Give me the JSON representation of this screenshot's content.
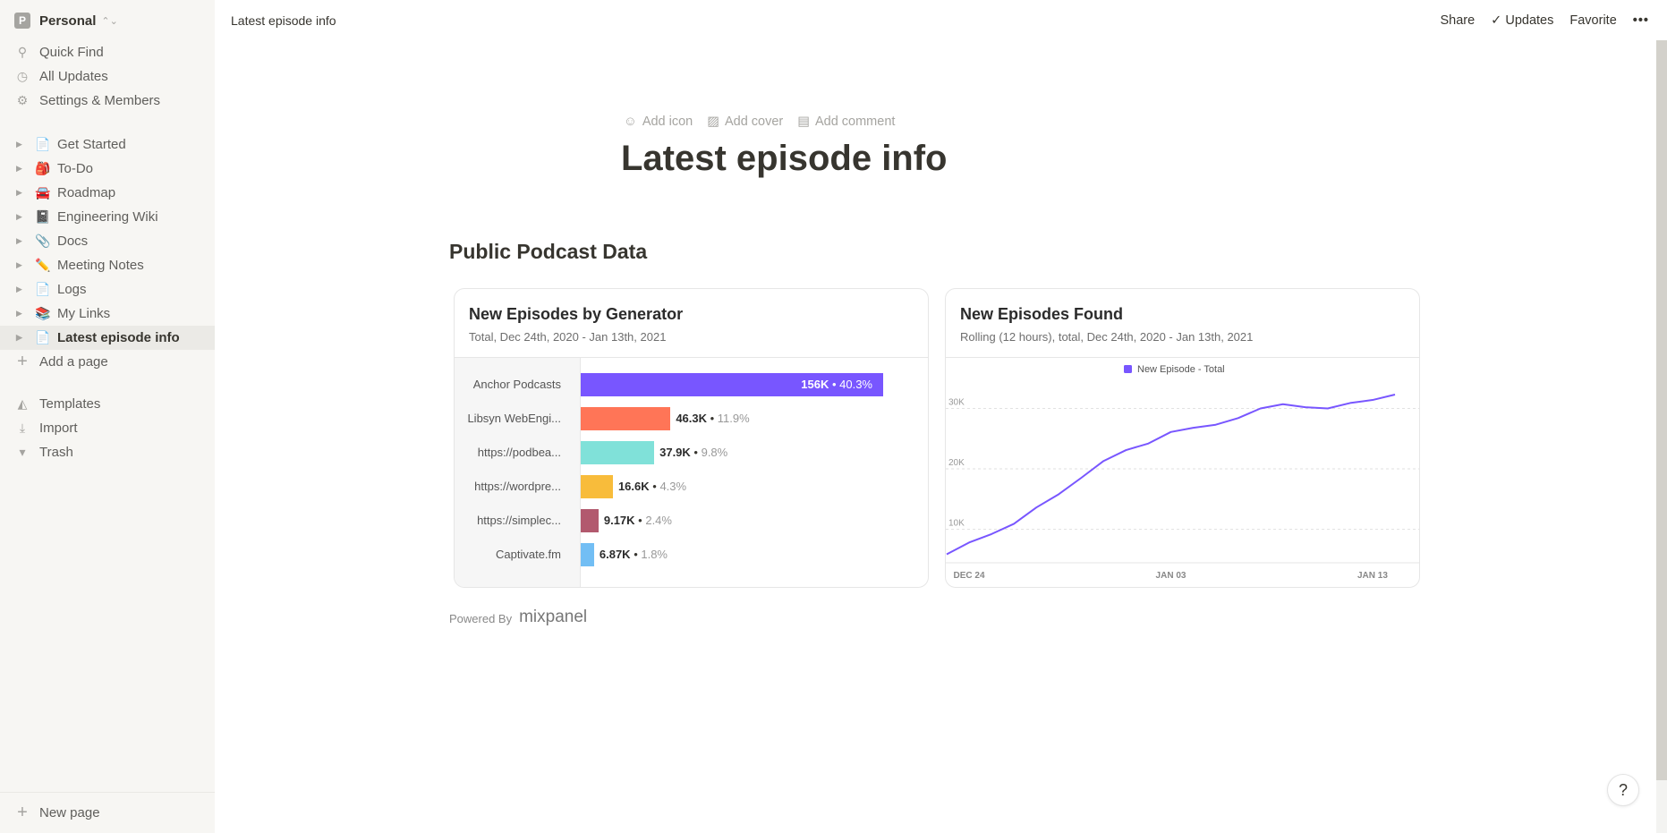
{
  "sidebar": {
    "workspace": {
      "initial": "P",
      "name": "Personal"
    },
    "nav": [
      {
        "label": "Quick Find",
        "icon": "search-icon"
      },
      {
        "label": "All Updates",
        "icon": "clock-icon"
      },
      {
        "label": "Settings & Members",
        "icon": "gear-icon"
      }
    ],
    "pages": [
      {
        "label": "Get Started",
        "emoji": "📄"
      },
      {
        "label": "To-Do",
        "emoji": "🎒"
      },
      {
        "label": "Roadmap",
        "emoji": "🚘"
      },
      {
        "label": "Engineering Wiki",
        "emoji": "📓"
      },
      {
        "label": "Docs",
        "emoji": "📎"
      },
      {
        "label": "Meeting Notes",
        "emoji": "✏️"
      },
      {
        "label": "Logs",
        "emoji": "📄"
      },
      {
        "label": "My Links",
        "emoji": "📚"
      },
      {
        "label": "Latest episode info",
        "emoji": "📄",
        "active": true
      }
    ],
    "add_page": "Add a page",
    "tools": [
      {
        "label": "Templates",
        "icon": "templates-icon"
      },
      {
        "label": "Import",
        "icon": "import-icon"
      },
      {
        "label": "Trash",
        "icon": "trash-icon"
      }
    ],
    "new_page": "New page"
  },
  "topbar": {
    "breadcrumb": "Latest episode info",
    "share": "Share",
    "updates": "Updates",
    "favorite": "Favorite",
    "more": "•••"
  },
  "page": {
    "add_icon": "Add icon",
    "add_cover": "Add cover",
    "add_comment": "Add comment",
    "title": "Latest episode info",
    "section": "Public Podcast Data",
    "powered_by": "Powered By",
    "powered_logo": "mixpanel",
    "help": "?"
  },
  "chart_data": [
    {
      "type": "bar",
      "orientation": "horizontal",
      "title": "New Episodes by Generator",
      "subtitle": "Total, Dec 24th, 2020 - Jan 13th, 2021",
      "categories": [
        "Anchor Podcasts",
        "Libsyn WebEngi...",
        "https://podbea...",
        "https://wordpre...",
        "https://simplec...",
        "Captivate.fm"
      ],
      "values": [
        156000,
        46300,
        37900,
        16600,
        9170,
        6870
      ],
      "value_labels": [
        "156K",
        "46.3K",
        "37.9K",
        "16.6K",
        "9.17K",
        "6.87K"
      ],
      "percent_labels": [
        "40.3%",
        "11.9%",
        "9.8%",
        "4.3%",
        "2.4%",
        "1.8%"
      ],
      "colors": [
        "#7856ff",
        "#ff7557",
        "#80e1d9",
        "#f8bc3b",
        "#b2596e",
        "#72bef4"
      ]
    },
    {
      "type": "line",
      "title": "New Episodes Found",
      "subtitle": "Rolling (12 hours), total, Dec 24th, 2020 - Jan 13th, 2021",
      "legend": "top",
      "series": [
        {
          "name": "New Episode - Total",
          "color": "#7856ff",
          "values": [
            5850,
            7800,
            9200,
            10900,
            13600,
            15800,
            18500,
            21300,
            23100,
            24200,
            26100,
            26800,
            27300,
            28400,
            30000,
            30700,
            30200,
            30000,
            30900,
            31400,
            32300
          ]
        }
      ],
      "x_ticks": [
        "DEC 24",
        "JAN 03",
        "JAN 13"
      ],
      "y_ticks": [
        "10K",
        "20K",
        "30K"
      ],
      "y_tick_values": [
        10000,
        20000,
        30000
      ],
      "grid": true
    }
  ]
}
